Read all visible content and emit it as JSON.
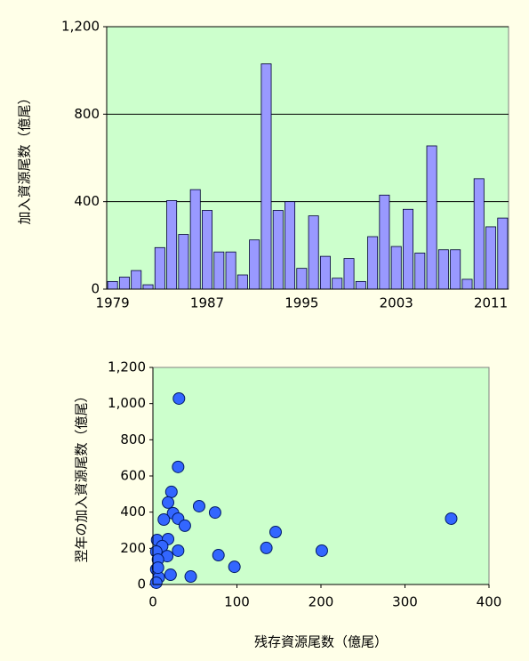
{
  "chart_data": [
    {
      "type": "bar",
      "y_label": "加入資源尾数（億尾）",
      "categories": [
        "1979",
        null,
        null,
        null,
        null,
        null,
        null,
        null,
        "1987",
        null,
        null,
        null,
        null,
        null,
        null,
        null,
        "1995",
        null,
        null,
        null,
        null,
        null,
        null,
        null,
        "2003",
        null,
        null,
        null,
        null,
        null,
        null,
        null,
        "2011",
        null
      ],
      "values": [
        35,
        55,
        85,
        20,
        190,
        405,
        250,
        455,
        360,
        170,
        170,
        65,
        225,
        1030,
        360,
        400,
        95,
        335,
        150,
        50,
        140,
        35,
        240,
        430,
        195,
        365,
        165,
        655,
        180,
        180,
        45,
        505,
        285,
        325
      ],
      "color": "#9999ff",
      "plot_background": "#ccffcc",
      "ylim": [
        0,
        1200
      ],
      "yticks": [
        0,
        400,
        800,
        {
          "value": 1200,
          "label": "1,200"
        }
      ],
      "grid": true
    },
    {
      "type": "scatter",
      "x_label": "残存資源尾数（億尾）",
      "y_label": "翌年の加入資源尾数（億尾）",
      "x": [
        31,
        30,
        22,
        18,
        24,
        55,
        74,
        13,
        30,
        38,
        146,
        355,
        5,
        18,
        11,
        4,
        30,
        201,
        135,
        78,
        17,
        6,
        97,
        4,
        21,
        45,
        7,
        4,
        6
      ],
      "values": [
        1028,
        650,
        512,
        453,
        394,
        433,
        398,
        359,
        364,
        325,
        290,
        364,
        246,
        251,
        212,
        182,
        187,
        187,
        202,
        162,
        157,
        138,
        98,
        84,
        54,
        44,
        39,
        10,
        93
      ],
      "color": "#3366ff",
      "plot_background": "#ccffcc",
      "xlim": [
        0,
        400
      ],
      "xticks": [
        0,
        100,
        200,
        300,
        400
      ],
      "ylim": [
        0,
        1200
      ],
      "yticks": [
        0,
        200,
        400,
        600,
        800,
        {
          "value": 1000,
          "label": "1,000"
        },
        {
          "value": 1200,
          "label": "1,200"
        }
      ],
      "grid": false
    }
  ]
}
